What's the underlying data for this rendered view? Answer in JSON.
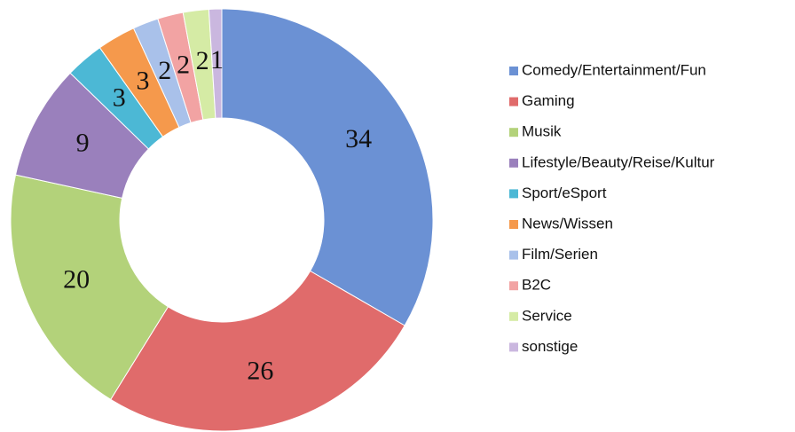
{
  "chart_data": {
    "type": "donut",
    "categories": [
      "Comedy/Entertainment/Fun",
      "Gaming",
      "Musik",
      "Lifestyle/Beauty/Reise/Kultur",
      "Sport/eSport",
      "News/Wissen",
      "Film/Serien",
      "B2C",
      "Service",
      "sonstige"
    ],
    "values": [
      34,
      26,
      20,
      9,
      3,
      3,
      2,
      2,
      2,
      1
    ],
    "colors": [
      "#6b91d4",
      "#e06b6b",
      "#b3d27a",
      "#9a80bc",
      "#4cb8d5",
      "#f5994c",
      "#a9c1ea",
      "#f2a3a3",
      "#d5eba5",
      "#cab7df"
    ],
    "legend": "right"
  }
}
